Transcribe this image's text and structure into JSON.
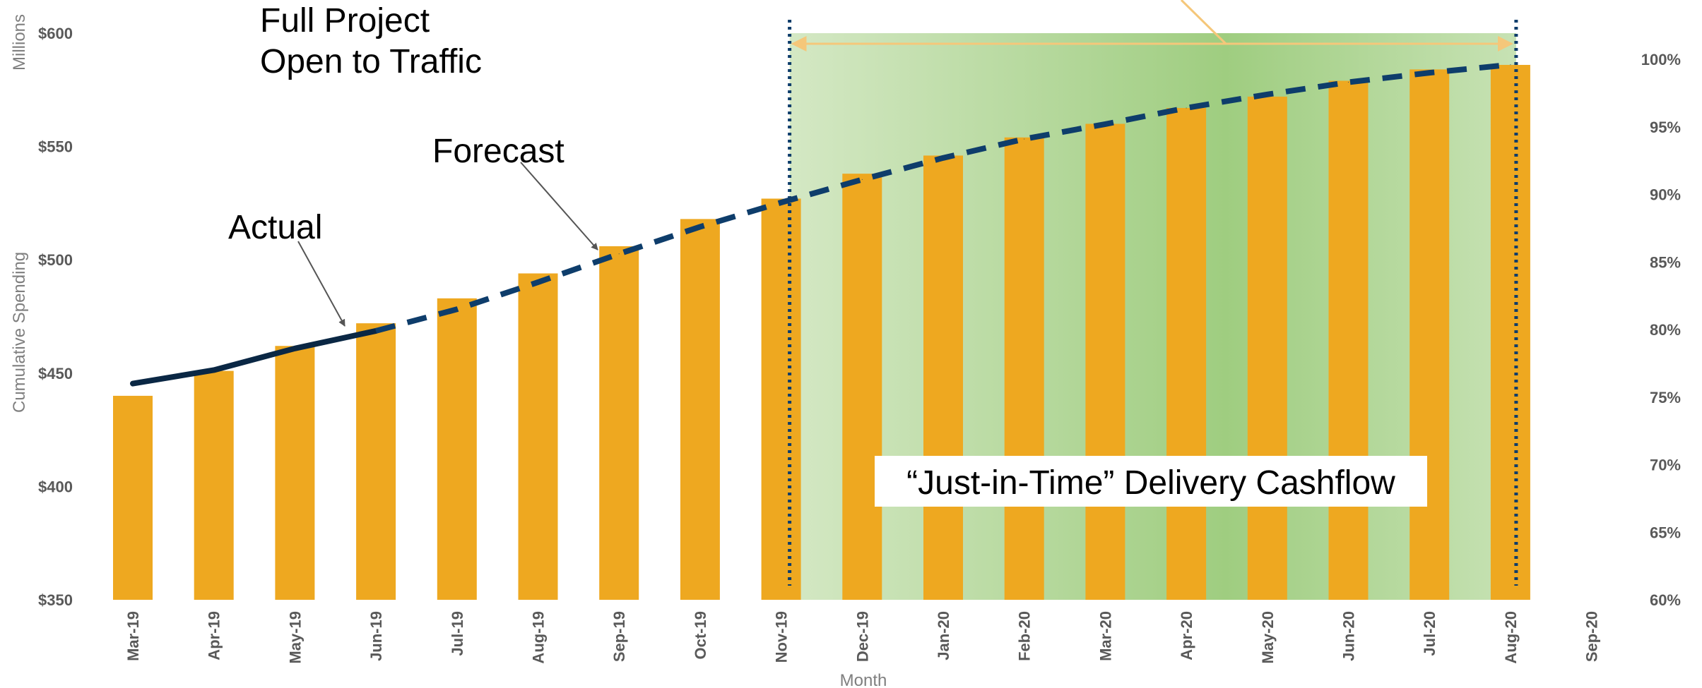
{
  "chart_data": {
    "type": "bar",
    "xlabel": "Month",
    "ylabel": "Cumulative Spending",
    "yunit_label": "Millions",
    "ylim": [
      350,
      600
    ],
    "y_ticks": [
      "$350",
      "$400",
      "$450",
      "$500",
      "$550",
      "$600"
    ],
    "y2lim": [
      60,
      100
    ],
    "y2_ticks": [
      "60%",
      "65%",
      "70%",
      "75%",
      "80%",
      "85%",
      "90%",
      "95%",
      "100%"
    ],
    "categories": [
      "Mar-19",
      "Apr-19",
      "May-19",
      "Jun-19",
      "Jul-19",
      "Aug-19",
      "Sep-19",
      "Oct-19",
      "Nov-19",
      "Dec-19",
      "Jan-20",
      "Feb-20",
      "Mar-20",
      "Apr-20",
      "May-20",
      "Jun-20",
      "Jul-20",
      "Aug-20",
      "Sep-20"
    ],
    "series": [
      {
        "kind": "bar",
        "color": "#EEA820",
        "values": [
          440,
          451,
          462,
          472,
          483,
          494,
          506,
          518,
          527,
          538,
          546,
          554,
          560,
          567,
          572,
          579,
          584,
          586,
          null
        ]
      },
      {
        "kind": "line",
        "axis": "secondary",
        "style": "solid",
        "color": "#0A2744",
        "values": [
          76.0,
          77.0,
          78.6,
          79.9,
          null,
          null,
          null,
          null,
          null,
          null,
          null,
          null,
          null,
          null,
          null,
          null,
          null,
          null,
          null
        ]
      },
      {
        "kind": "line",
        "axis": "secondary",
        "style": "dashed",
        "color": "#0E3D6B",
        "values": [
          null,
          null,
          null,
          79.9,
          81.5,
          83.5,
          85.6,
          87.6,
          89.4,
          91.1,
          92.7,
          94.1,
          95.2,
          96.4,
          97.4,
          98.3,
          99.0,
          99.6,
          null
        ]
      }
    ],
    "shaded_region": {
      "start": "Nov-19",
      "end": "Aug-20"
    },
    "annotations": {
      "full_project": [
        "Full Project",
        "Open to Traffic"
      ],
      "actual": "Actual",
      "forecast": "Forecast",
      "banner": "“Just-in-Time” Delivery Cashflow"
    },
    "colors": {
      "bar": "#EEA820",
      "actual_line": "#0A2744",
      "forecast_line": "#0E3D6B",
      "shade_light": "#D4E8C4",
      "shade_dark": "#9FCD80",
      "range_arrow": "#F5C77A"
    }
  }
}
